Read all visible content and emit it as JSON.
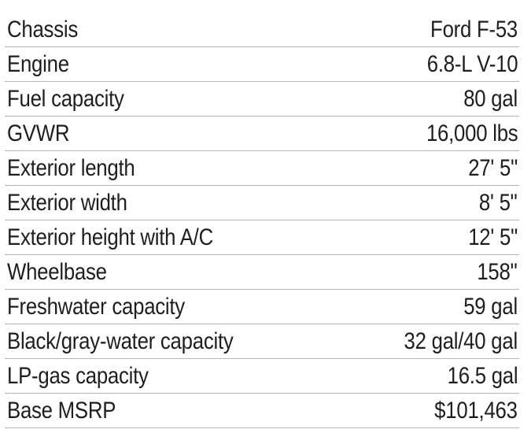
{
  "specs": {
    "rows": [
      {
        "label": "Chassis",
        "value": "Ford F-53"
      },
      {
        "label": "Engine",
        "value": "6.8-L V-10"
      },
      {
        "label": "Fuel capacity",
        "value": "80 gal"
      },
      {
        "label": "GVWR",
        "value": "16,000 lbs"
      },
      {
        "label": "Exterior length",
        "value": "27' 5\""
      },
      {
        "label": "Exterior width",
        "value": "8' 5\""
      },
      {
        "label": "Exterior height with A/C",
        "value": "12' 5\""
      },
      {
        "label": "Wheelbase",
        "value": "158\""
      },
      {
        "label": "Freshwater capacity",
        "value": "59 gal"
      },
      {
        "label": "Black/gray-water capacity",
        "value": "32 gal/40 gal"
      },
      {
        "label": "LP-gas capacity",
        "value": "16.5 gal"
      },
      {
        "label": "Base MSRP",
        "value": "$101,463"
      }
    ]
  }
}
